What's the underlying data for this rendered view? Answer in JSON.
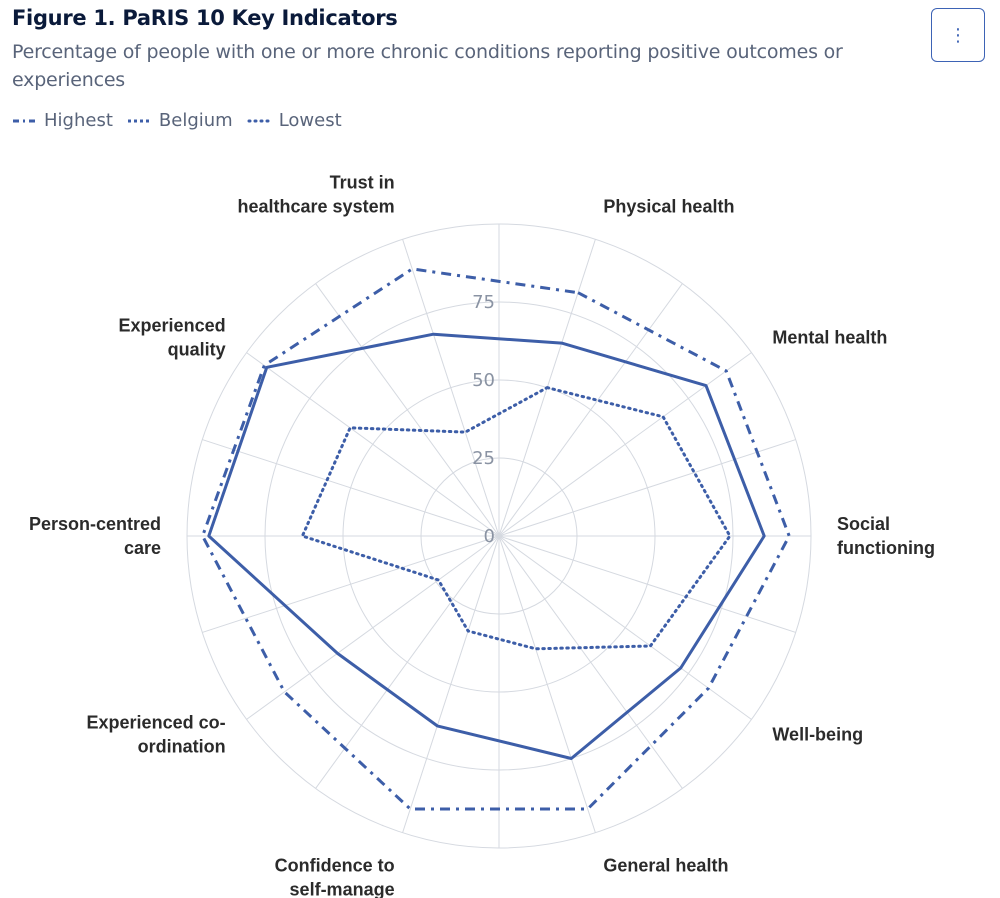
{
  "header": {
    "title": "Figure 1. PaRIS 10 Key Indicators",
    "subtitle": "Percentage of people with one or more chronic conditions reporting positive outcomes or experiences",
    "menu_icon": "⋮"
  },
  "colors": {
    "series": "#3d5ea8",
    "grid": "#d5d9e0"
  },
  "chart_data": {
    "type": "radar",
    "title": "Figure 1. PaRIS 10 Key Indicators",
    "subtitle": "Percentage of people with one or more chronic conditions reporting positive outcomes or experiences",
    "categories": [
      "Physical health",
      "Mental health",
      "Social functioning",
      "Well-being",
      "General health",
      "Confidence to self-manage",
      "Experienced co-ordination",
      "Person-centred care",
      "Experienced quality",
      "Trust in healthcare system"
    ],
    "category_lines": [
      [
        "Physical health"
      ],
      [
        "Mental health"
      ],
      [
        "Social",
        "functioning"
      ],
      [
        "Well-being"
      ],
      [
        "General health"
      ],
      [
        "Confidence to",
        "self-manage"
      ],
      [
        "Experienced co-",
        "ordination"
      ],
      [
        "Person-centred",
        "care"
      ],
      [
        "Experienced",
        "quality"
      ],
      [
        "Trust in",
        "healthcare system"
      ]
    ],
    "radial_axis": {
      "min": 0,
      "max": 100,
      "ticks": [
        0,
        25,
        50,
        75
      ]
    },
    "series": [
      {
        "name": "Highest",
        "style": "dashdot",
        "values": [
          82,
          90,
          93,
          83,
          92,
          92,
          85,
          95,
          93,
          90
        ]
      },
      {
        "name": "Belgium",
        "style": "solid",
        "values": [
          65,
          82,
          85,
          72,
          75,
          64,
          64,
          93,
          92,
          68
        ]
      },
      {
        "name": "Lowest",
        "style": "dotted",
        "values": [
          50,
          65,
          74,
          60,
          38,
          32,
          24,
          63,
          59,
          35
        ]
      }
    ],
    "legend_position": "top-left",
    "grid": true
  }
}
